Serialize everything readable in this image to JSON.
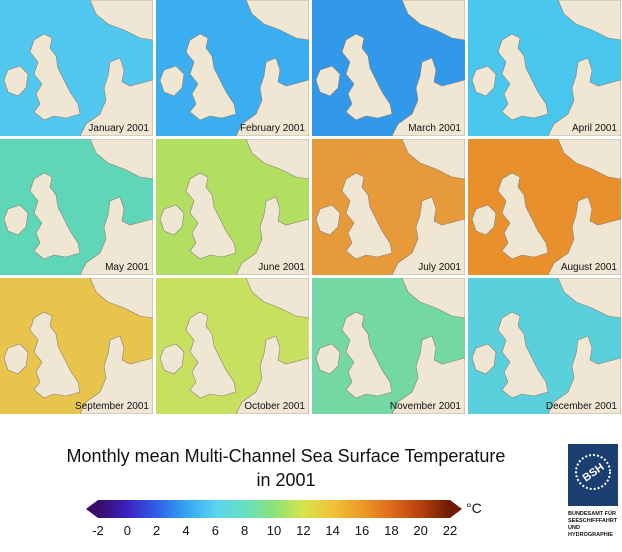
{
  "panels": [
    {
      "label": "January 2001",
      "sea_color": "#52c7f0"
    },
    {
      "label": "February 2001",
      "sea_color": "#3aaef0"
    },
    {
      "label": "March 2001",
      "sea_color": "#3299ea"
    },
    {
      "label": "April 2001",
      "sea_color": "#48c6ee"
    },
    {
      "label": "May 2001",
      "sea_color": "#5fd6b8"
    },
    {
      "label": "June 2001",
      "sea_color": "#b2de62"
    },
    {
      "label": "July 2001",
      "sea_color": "#e69a3a"
    },
    {
      "label": "August 2001",
      "sea_color": "#e8902c"
    },
    {
      "label": "September 2001",
      "sea_color": "#e8c44c"
    },
    {
      "label": "October 2001",
      "sea_color": "#c8e060"
    },
    {
      "label": "November 2001",
      "sea_color": "#74d8a4"
    },
    {
      "label": "December 2001",
      "sea_color": "#5ad0dc"
    }
  ],
  "land_color": "#efe7d3",
  "title_line1": "Monthly mean Multi-Channel Sea Surface Temperature",
  "title_line2": "in 2001",
  "colorbar": {
    "ticks": [
      "-2",
      "0",
      "2",
      "4",
      "6",
      "8",
      "10",
      "12",
      "14",
      "16",
      "18",
      "20",
      "22"
    ],
    "unit": "°C",
    "colors": [
      "#3a0a66",
      "#3a22c2",
      "#2f5fe8",
      "#36a4f2",
      "#58d4f0",
      "#66e0c0",
      "#8ce27a",
      "#d6e44a",
      "#f0c236",
      "#ee9a28",
      "#e06a1c",
      "#b8400c",
      "#6e1a04"
    ]
  },
  "logo": {
    "mark": "BSH",
    "lines": [
      "BUNDESAMT FÜR",
      "SEESCHIFFFAHRT",
      "UND",
      "HYDROGRAPHIE"
    ]
  }
}
